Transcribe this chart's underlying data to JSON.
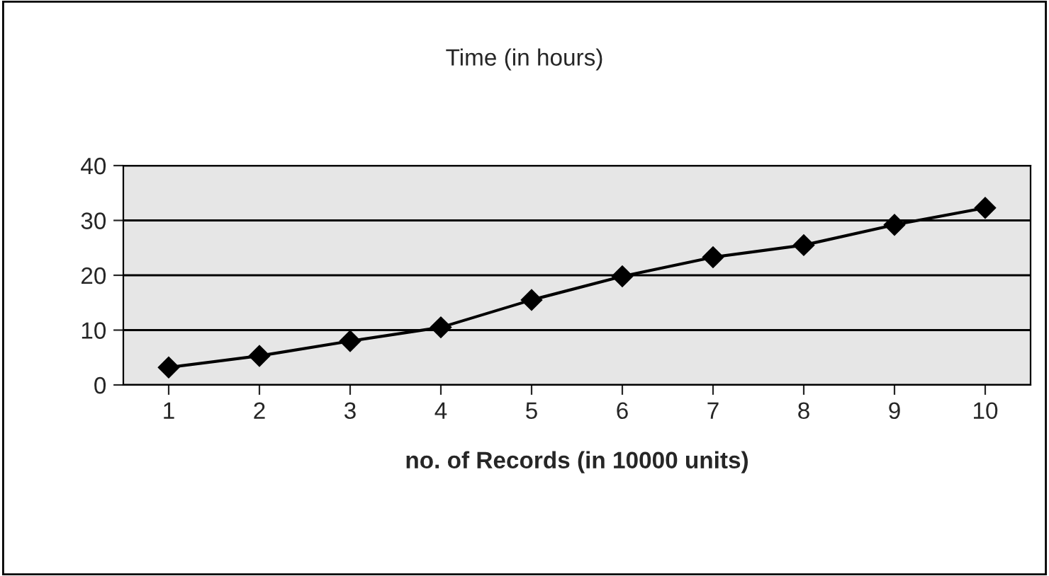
{
  "chart_data": {
    "type": "line",
    "title": "Time (in hours)",
    "xlabel": "no. of Records (in 10000 units)",
    "categories": [
      "1",
      "2",
      "3",
      "4",
      "5",
      "6",
      "7",
      "8",
      "9",
      "10"
    ],
    "series": [
      {
        "color": "#000000",
        "values": [
          3.2,
          5.3,
          8,
          10.5,
          15.5,
          19.8,
          23.3,
          25.5,
          29.2,
          32.3
        ]
      }
    ],
    "ylim": [
      0,
      40
    ],
    "yticks": [
      0,
      10,
      20,
      30,
      40
    ],
    "grid": "y",
    "marker": "diamond",
    "line_style": "solid"
  }
}
